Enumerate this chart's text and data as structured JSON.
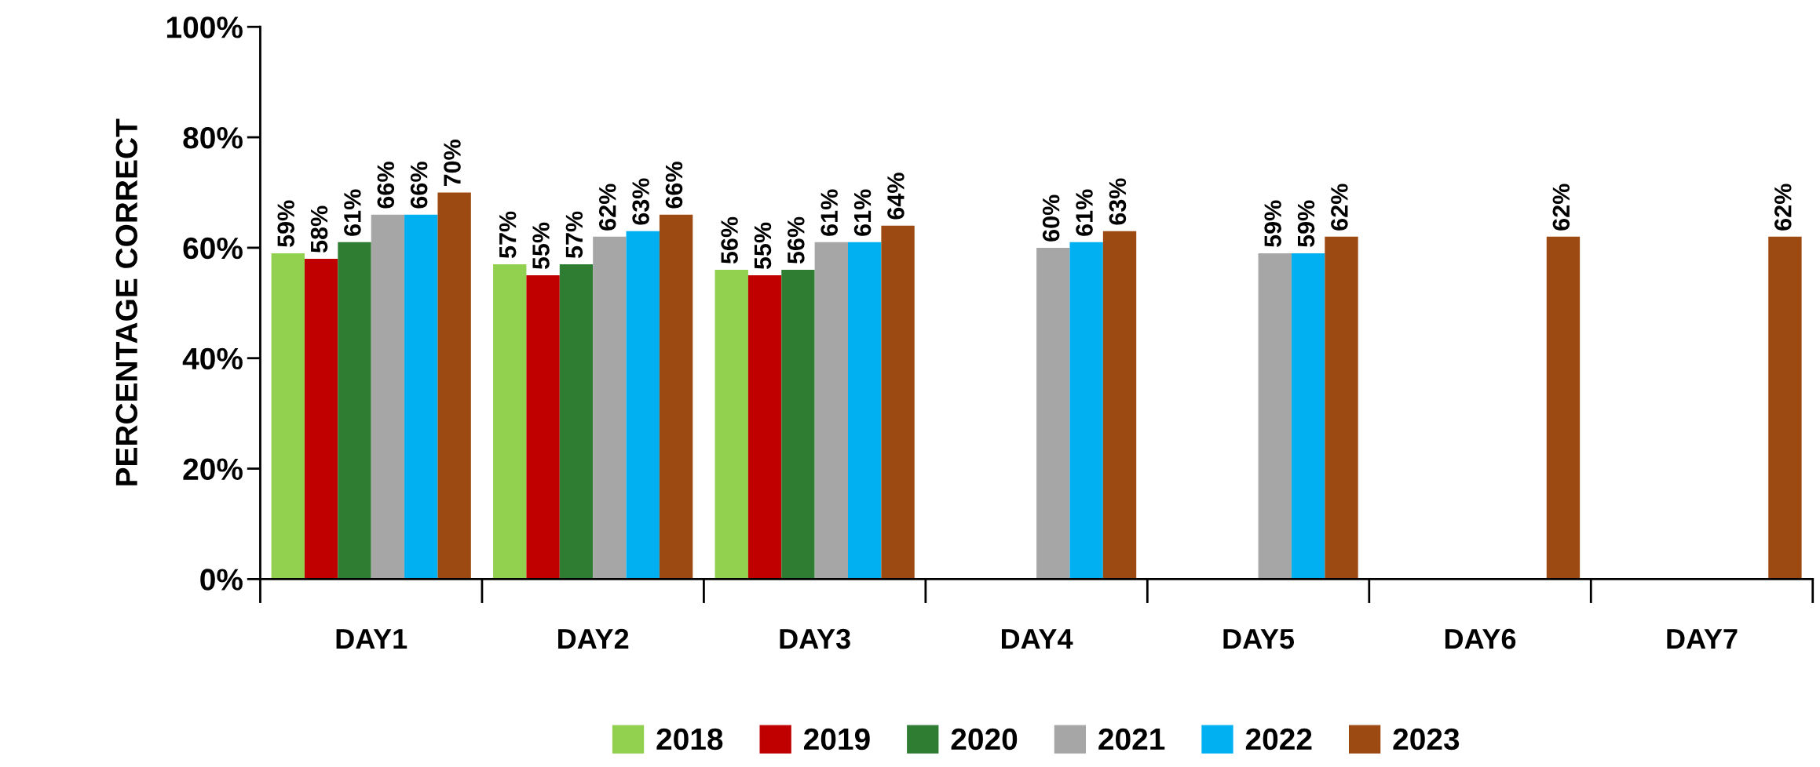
{
  "chart_data": {
    "type": "bar",
    "ylabel": "PERCENTAGE CORRECT",
    "categories": [
      "DAY1",
      "DAY2",
      "DAY3",
      "DAY4",
      "DAY5",
      "DAY6",
      "DAY7"
    ],
    "series": [
      {
        "name": "2018",
        "color": "#92d050",
        "values": [
          59,
          57,
          56,
          null,
          null,
          null,
          null
        ],
        "value_labels": [
          "59%",
          "57%",
          "56%",
          null,
          null,
          null,
          null
        ]
      },
      {
        "name": "2019",
        "color": "#c00000",
        "values": [
          58,
          55,
          55,
          null,
          null,
          null,
          null
        ],
        "value_labels": [
          "58%",
          "55%",
          "55%",
          null,
          null,
          null,
          null
        ]
      },
      {
        "name": "2020",
        "color": "#2e7d32",
        "values": [
          61,
          57,
          56,
          null,
          null,
          null,
          null
        ],
        "value_labels": [
          "61%",
          "57%",
          "56%",
          null,
          null,
          null,
          null
        ]
      },
      {
        "name": "2021",
        "color": "#a6a6a6",
        "values": [
          66,
          62,
          61,
          60,
          59,
          null,
          null
        ],
        "value_labels": [
          "66%",
          "62%",
          "61%",
          "60%",
          "59%",
          null,
          null
        ]
      },
      {
        "name": "2022",
        "color": "#00b0f0",
        "values": [
          66,
          63,
          61,
          61,
          59,
          null,
          null
        ],
        "value_labels": [
          "66%",
          "63%",
          "61%",
          "61%",
          "59%",
          null,
          null
        ]
      },
      {
        "name": "2023",
        "color": "#9c4a12",
        "values": [
          70,
          66,
          64,
          63,
          62,
          62,
          62
        ],
        "value_labels": [
          "70%",
          "66%",
          "64%",
          "63%",
          "62%",
          "62%",
          "62%"
        ]
      }
    ],
    "ylim": [
      0,
      100
    ],
    "yticks": [
      {
        "value": 0,
        "label": "0%"
      },
      {
        "value": 20,
        "label": "20%"
      },
      {
        "value": 40,
        "label": "40%"
      },
      {
        "value": 60,
        "label": "60%"
      },
      {
        "value": 80,
        "label": "80%"
      },
      {
        "value": 100,
        "label": "100%"
      }
    ],
    "grid": false,
    "legend": "bottom"
  }
}
